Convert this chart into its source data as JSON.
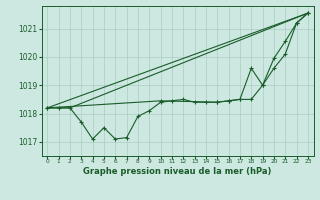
{
  "title": "Graphe pression niveau de la mer (hPa)",
  "bg_color": "#cce8e0",
  "grid_color": "#aaccc4",
  "line_color": "#1a5c2a",
  "text_color": "#1a5c2a",
  "xlim": [
    -0.5,
    23.5
  ],
  "ylim": [
    1016.5,
    1021.8
  ],
  "yticks": [
    1017,
    1018,
    1019,
    1020,
    1021
  ],
  "xticks": [
    0,
    1,
    2,
    3,
    4,
    5,
    6,
    7,
    8,
    9,
    10,
    11,
    12,
    13,
    14,
    15,
    16,
    17,
    18,
    19,
    20,
    21,
    22,
    23
  ],
  "series1_x": [
    0,
    1,
    2,
    3,
    4,
    5,
    6,
    7,
    8,
    9,
    10,
    11,
    12,
    13,
    14,
    15,
    16,
    17,
    18,
    19,
    20,
    21,
    22,
    23
  ],
  "series1_y": [
    1018.2,
    1018.2,
    1018.2,
    1017.7,
    1017.1,
    1017.5,
    1017.1,
    1017.15,
    1017.9,
    1018.1,
    1018.4,
    1018.45,
    1018.5,
    1018.4,
    1018.4,
    1018.4,
    1018.45,
    1018.5,
    1018.5,
    1019.0,
    1019.6,
    1020.1,
    1021.2,
    1021.55
  ],
  "series2_x": [
    0,
    23
  ],
  "series2_y": [
    1018.2,
    1021.55
  ],
  "series3_x": [
    0,
    10,
    15,
    16,
    17,
    18,
    19,
    20,
    21,
    22,
    23
  ],
  "series3_y": [
    1018.2,
    1018.45,
    1018.4,
    1018.45,
    1018.5,
    1019.6,
    1019.0,
    1019.95,
    1020.55,
    1021.2,
    1021.55
  ],
  "series4_x": [
    0,
    2,
    23
  ],
  "series4_y": [
    1018.2,
    1018.2,
    1021.55
  ]
}
